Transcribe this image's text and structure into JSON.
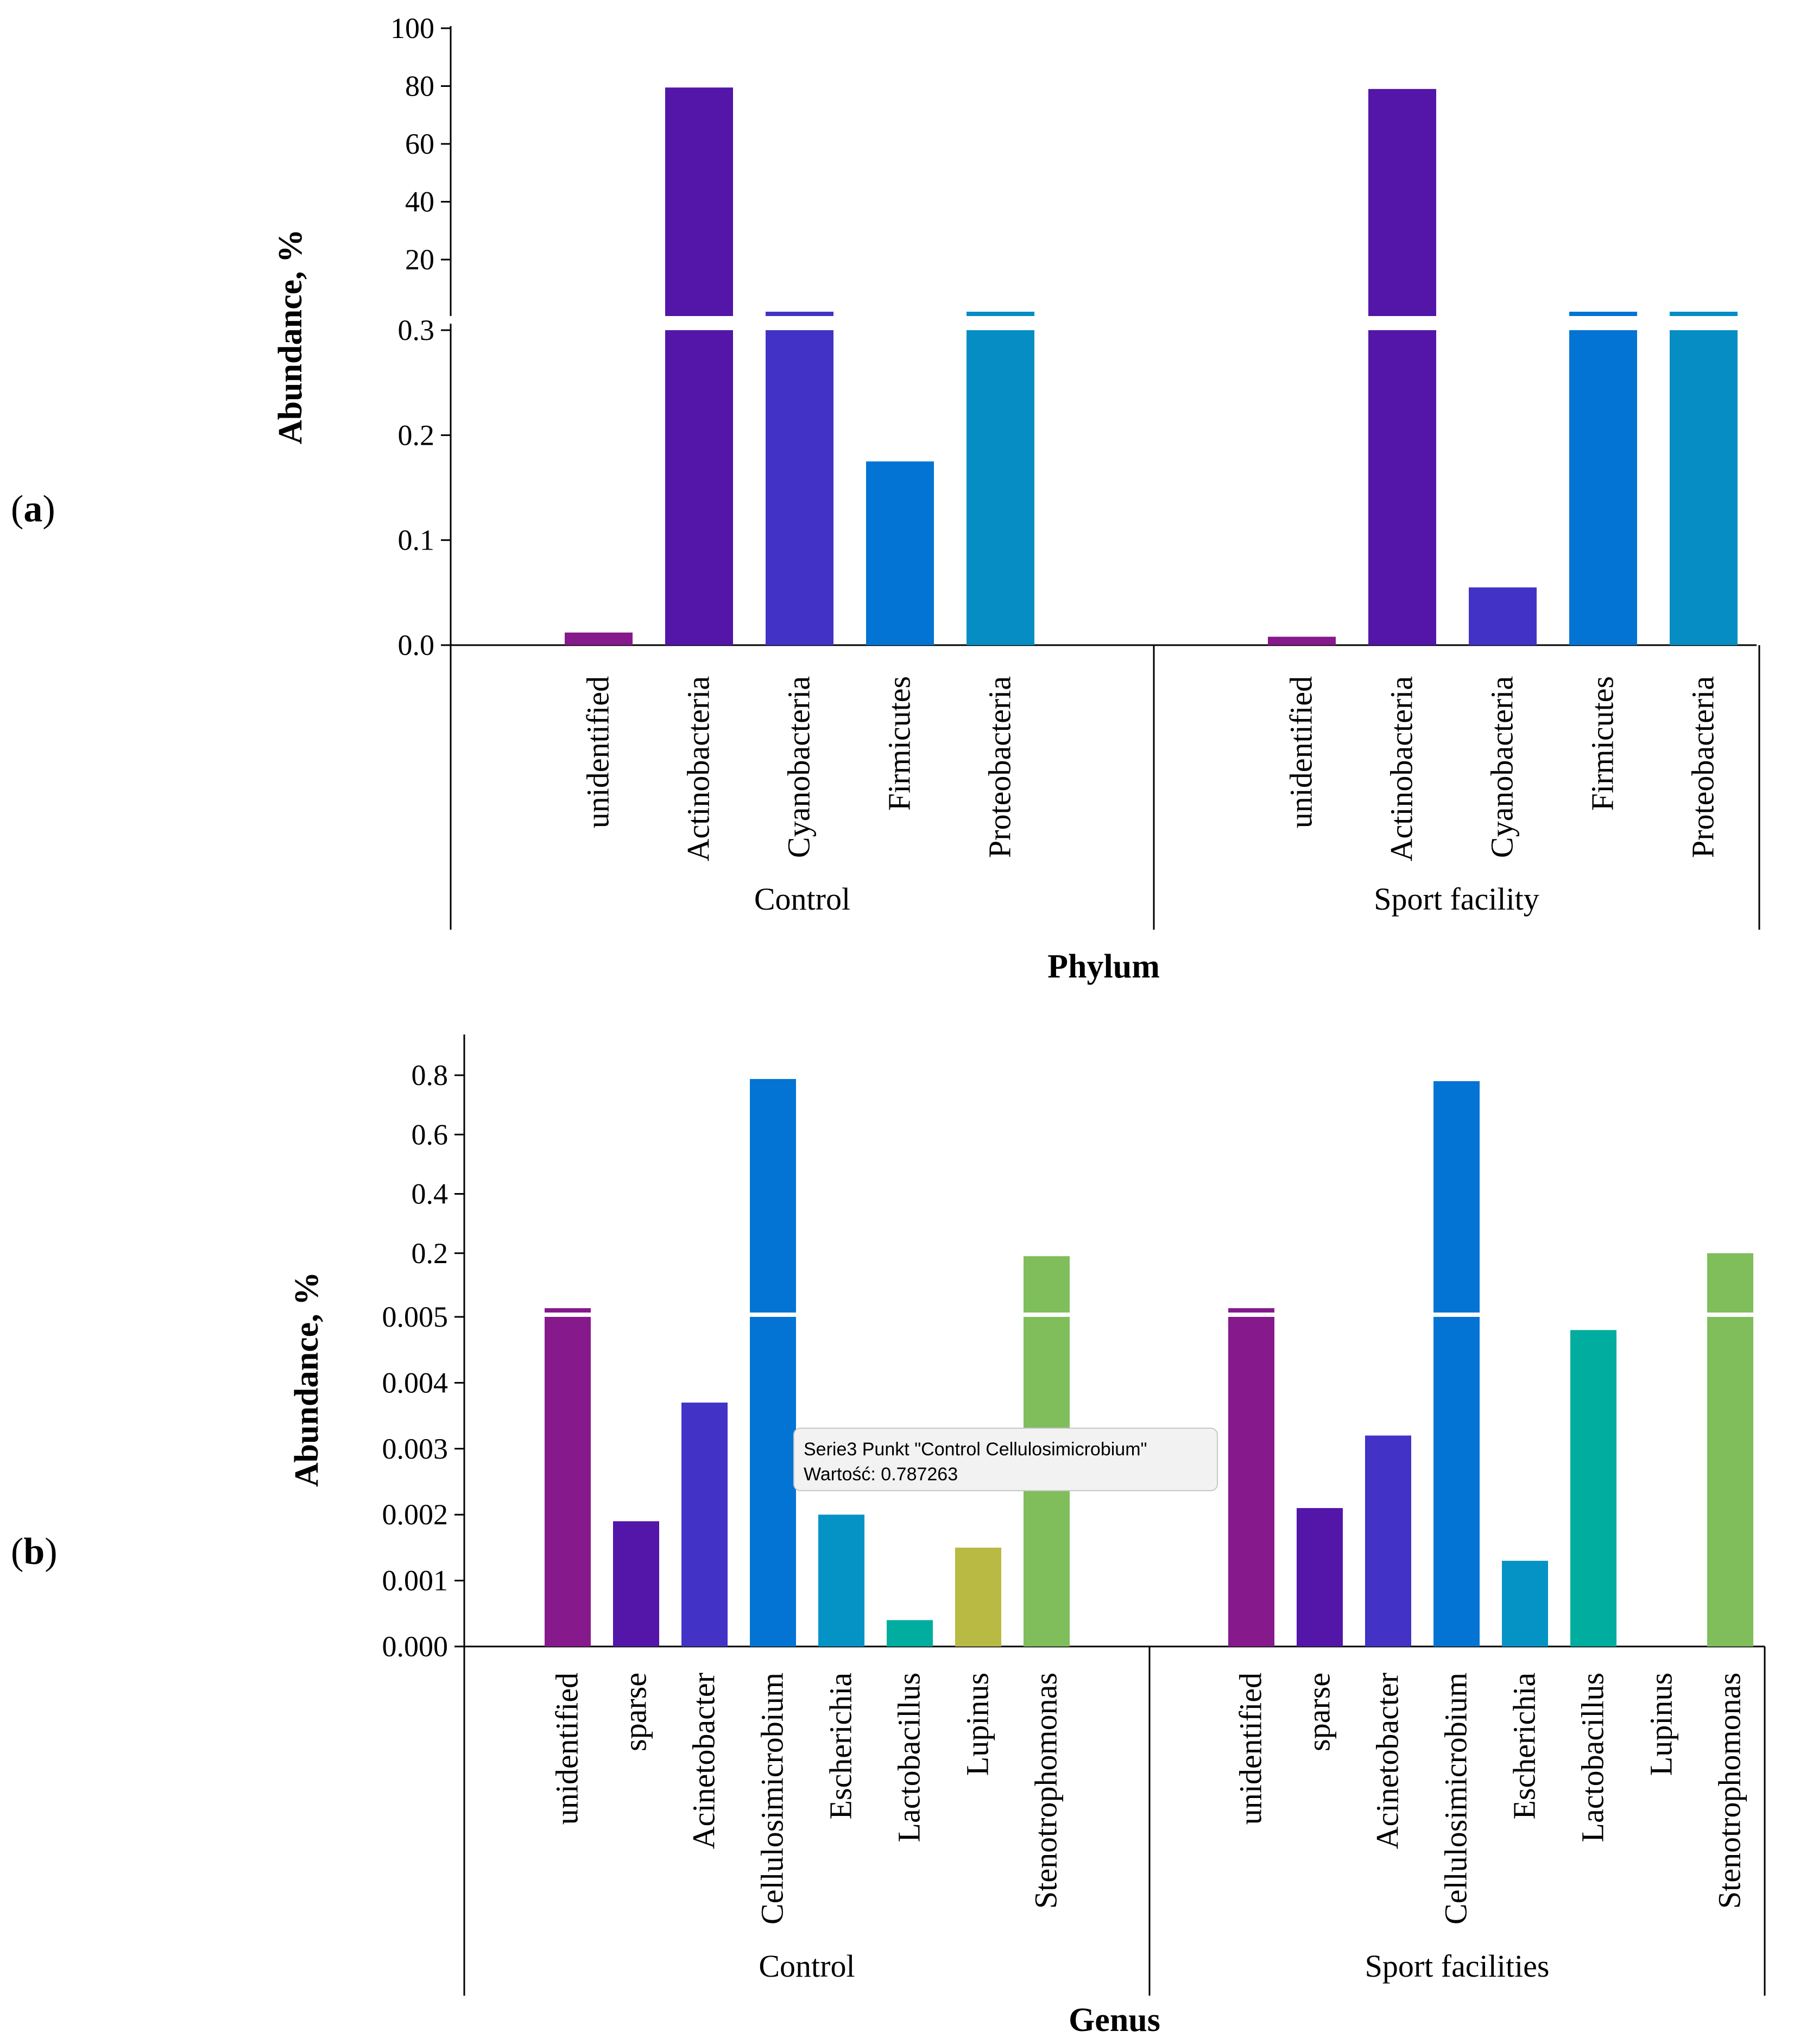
{
  "panels": [
    {
      "letter_prefix": "(",
      "letter": "a",
      "letter_suffix": ")",
      "ylabel": "Abundance, %",
      "xlabel": "Phylum",
      "tick_labels": [
        "0.0",
        "0.1",
        "0.2",
        "0.3",
        "20",
        "40",
        "60",
        "80",
        "100"
      ]
    },
    {
      "letter_prefix": "(",
      "letter": "b",
      "letter_suffix": ")",
      "ylabel": "Abundance, %",
      "xlabel": "Genus",
      "tick_labels": [
        "0.000",
        "0.001",
        "0.002",
        "0.003",
        "0.004",
        "0.005",
        "0.2",
        "0.4",
        "0.6",
        "0.8"
      ]
    }
  ],
  "tooltip": {
    "line1": "Serie3 Punkt \"Control Cellulosimicrobium\"",
    "line2": "Wartość: 0.787263"
  },
  "chart_data": [
    {
      "type": "bar",
      "ylabel": "Abundance, %",
      "xlabel": "Phylum",
      "axis_break": true,
      "y_lower_range": [
        0,
        0.3
      ],
      "y_upper_range": [
        20,
        100
      ],
      "groups": [
        {
          "name": "Control",
          "categories": [
            "unidentified",
            "Actinobacteria",
            "Cyanobacteria",
            "Firmicutes",
            "Proteobacteria"
          ],
          "values": [
            0.012,
            79.5,
            0.31,
            0.175,
            19.5
          ],
          "colors": [
            "#86198c",
            "#5316a8",
            "#4233c6",
            "#0474d4",
            "#058dc4"
          ]
        },
        {
          "name": "Sport facility",
          "categories": [
            "unidentified",
            "Actinobacteria",
            "Cyanobacteria",
            "Firmicutes",
            "Proteobacteria"
          ],
          "values": [
            0.008,
            79.0,
            0.055,
            0.31,
            20.0
          ],
          "colors": [
            "#86198c",
            "#5316a8",
            "#4233c6",
            "#0474d4",
            "#058dc4"
          ]
        }
      ]
    },
    {
      "type": "bar",
      "ylabel": "Abundance, %",
      "xlabel": "Genus",
      "axis_break": true,
      "y_lower_range": [
        0,
        0.005
      ],
      "y_upper_range": [
        0.005,
        0.8
      ],
      "groups": [
        {
          "name": "Control",
          "categories": [
            "unidentified",
            "sparse",
            "Acinetobacter",
            "Cellulosimicrobium",
            "Escherichia",
            "Lactobacillus",
            "Lupinus",
            "Stenotrophomonas"
          ],
          "values": [
            0.0053,
            0.0019,
            0.0037,
            0.787263,
            0.002,
            0.0004,
            0.0015,
            0.19
          ],
          "colors": [
            "#86198c",
            "#5316a8",
            "#4233c6",
            "#0474d4",
            "#0593c6",
            "#00ad9f",
            "#b8ba44",
            "#7fbe5b"
          ]
        },
        {
          "name": "Sport facilities",
          "categories": [
            "unidentified",
            "sparse",
            "Acinetobacter",
            "Cellulosimicrobium",
            "Escherichia",
            "Lactobacillus",
            "Lupinus",
            "Stenotrophomonas"
          ],
          "values": [
            0.0052,
            0.0021,
            0.0032,
            0.78,
            0.0013,
            0.0048,
            0,
            0.2
          ],
          "colors": [
            "#86198c",
            "#5316a8",
            "#4233c6",
            "#0474d4",
            "#0593c6",
            "#00ad9f",
            "#b8ba44",
            "#7fbe5b"
          ]
        }
      ]
    }
  ]
}
